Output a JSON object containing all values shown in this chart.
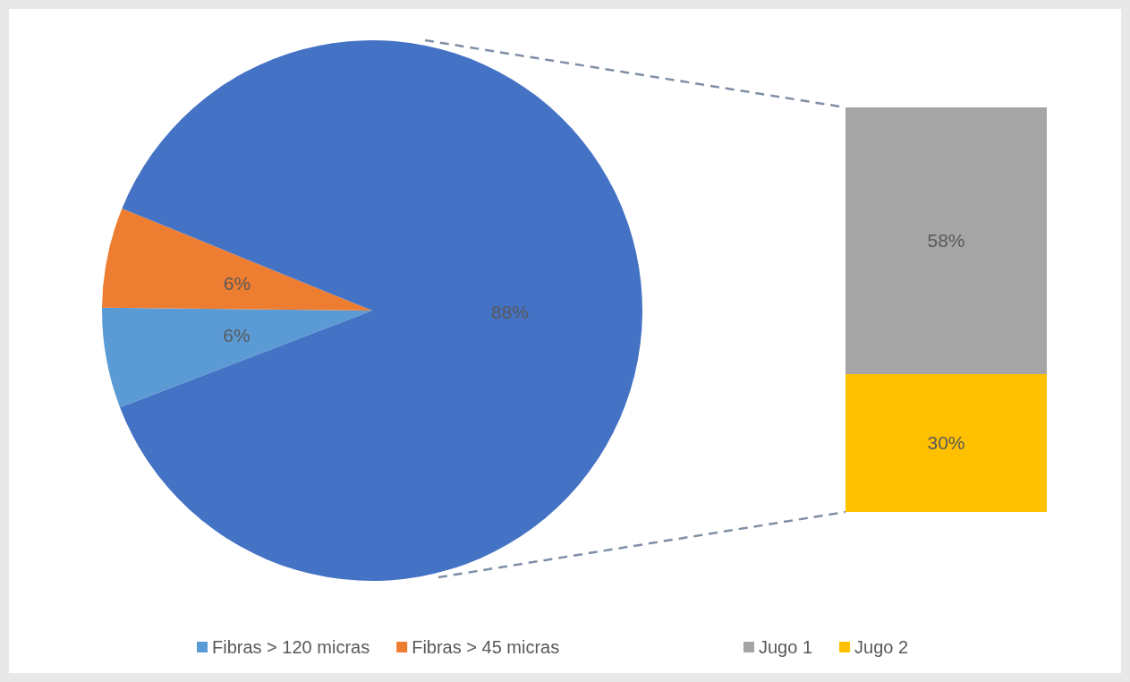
{
  "chart_data": [
    {
      "type": "pie",
      "categories": [
        "Fibras > 120 micras",
        "Fibras > 45 micras",
        null
      ],
      "values": [
        6,
        6,
        88
      ],
      "colors": [
        "#5b9bd5",
        "#ed7d31",
        "#4472c4"
      ],
      "value_labels": [
        "6%",
        "6%",
        "88%"
      ],
      "legend": "bottom"
    },
    {
      "type": "bar",
      "stacked": true,
      "categories": [
        null
      ],
      "series": [
        {
          "name": "Jugo 2",
          "color": "#ffc000",
          "values": [
            30
          ],
          "value_labels": [
            "30%"
          ]
        },
        {
          "name": "Jugo 1",
          "color": "#a5a5a5",
          "values": [
            58
          ],
          "value_labels": [
            "58%"
          ]
        }
      ],
      "data_labels": false,
      "legend": "bottom"
    }
  ]
}
